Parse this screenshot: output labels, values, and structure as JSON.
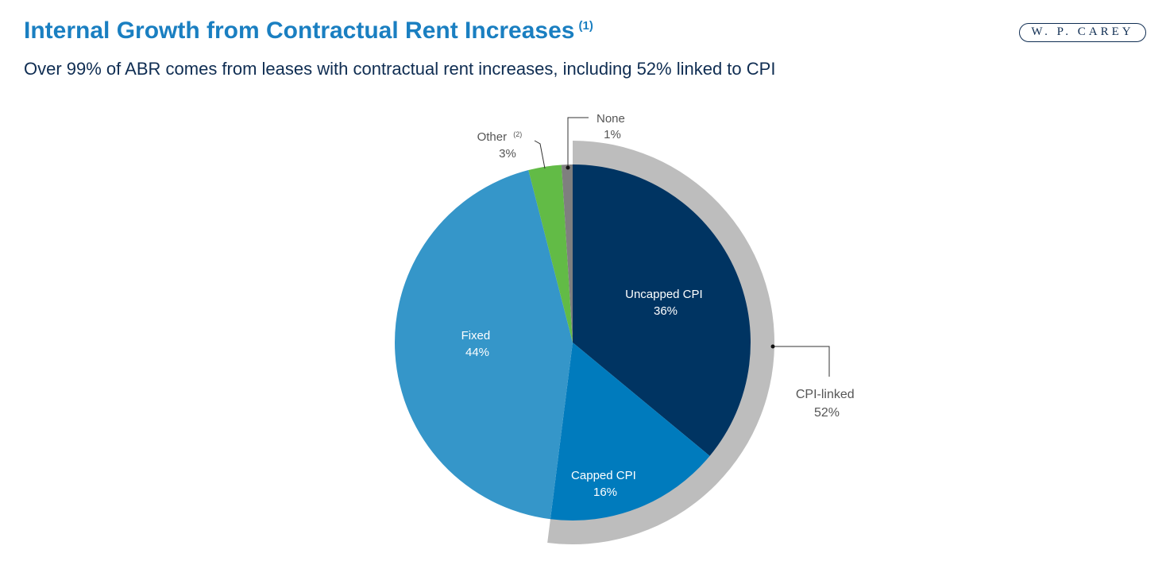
{
  "header": {
    "title": "Internal Growth from Contractual Rent Increases",
    "title_note": "(1)",
    "subtitle": "Over 99% of ABR comes from leases with contractual rent increases, including 52% linked to CPI",
    "logo": "W. P. CAREY"
  },
  "chart_data": {
    "type": "pie",
    "title": "Internal Growth from Contractual Rent Increases",
    "slices": [
      {
        "label": "Uncapped CPI",
        "value": 36,
        "value_label": "36%",
        "color": "#003462"
      },
      {
        "label": "Capped CPI",
        "value": 16,
        "value_label": "16%",
        "color": "#007bbd"
      },
      {
        "label": "Fixed",
        "value": 44,
        "value_label": "44%",
        "color": "#3596c9"
      },
      {
        "label": "Other",
        "note": "(2)",
        "value": 3,
        "value_label": "3%",
        "color": "#62bb46"
      },
      {
        "label": "None",
        "value": 1,
        "value_label": "1%",
        "color": "#7f7f7f"
      }
    ],
    "group": {
      "label": "CPI-linked",
      "value": 52,
      "value_label": "52%",
      "members": [
        "Uncapped CPI",
        "Capped CPI"
      ],
      "color": "#bdbdbd"
    }
  }
}
